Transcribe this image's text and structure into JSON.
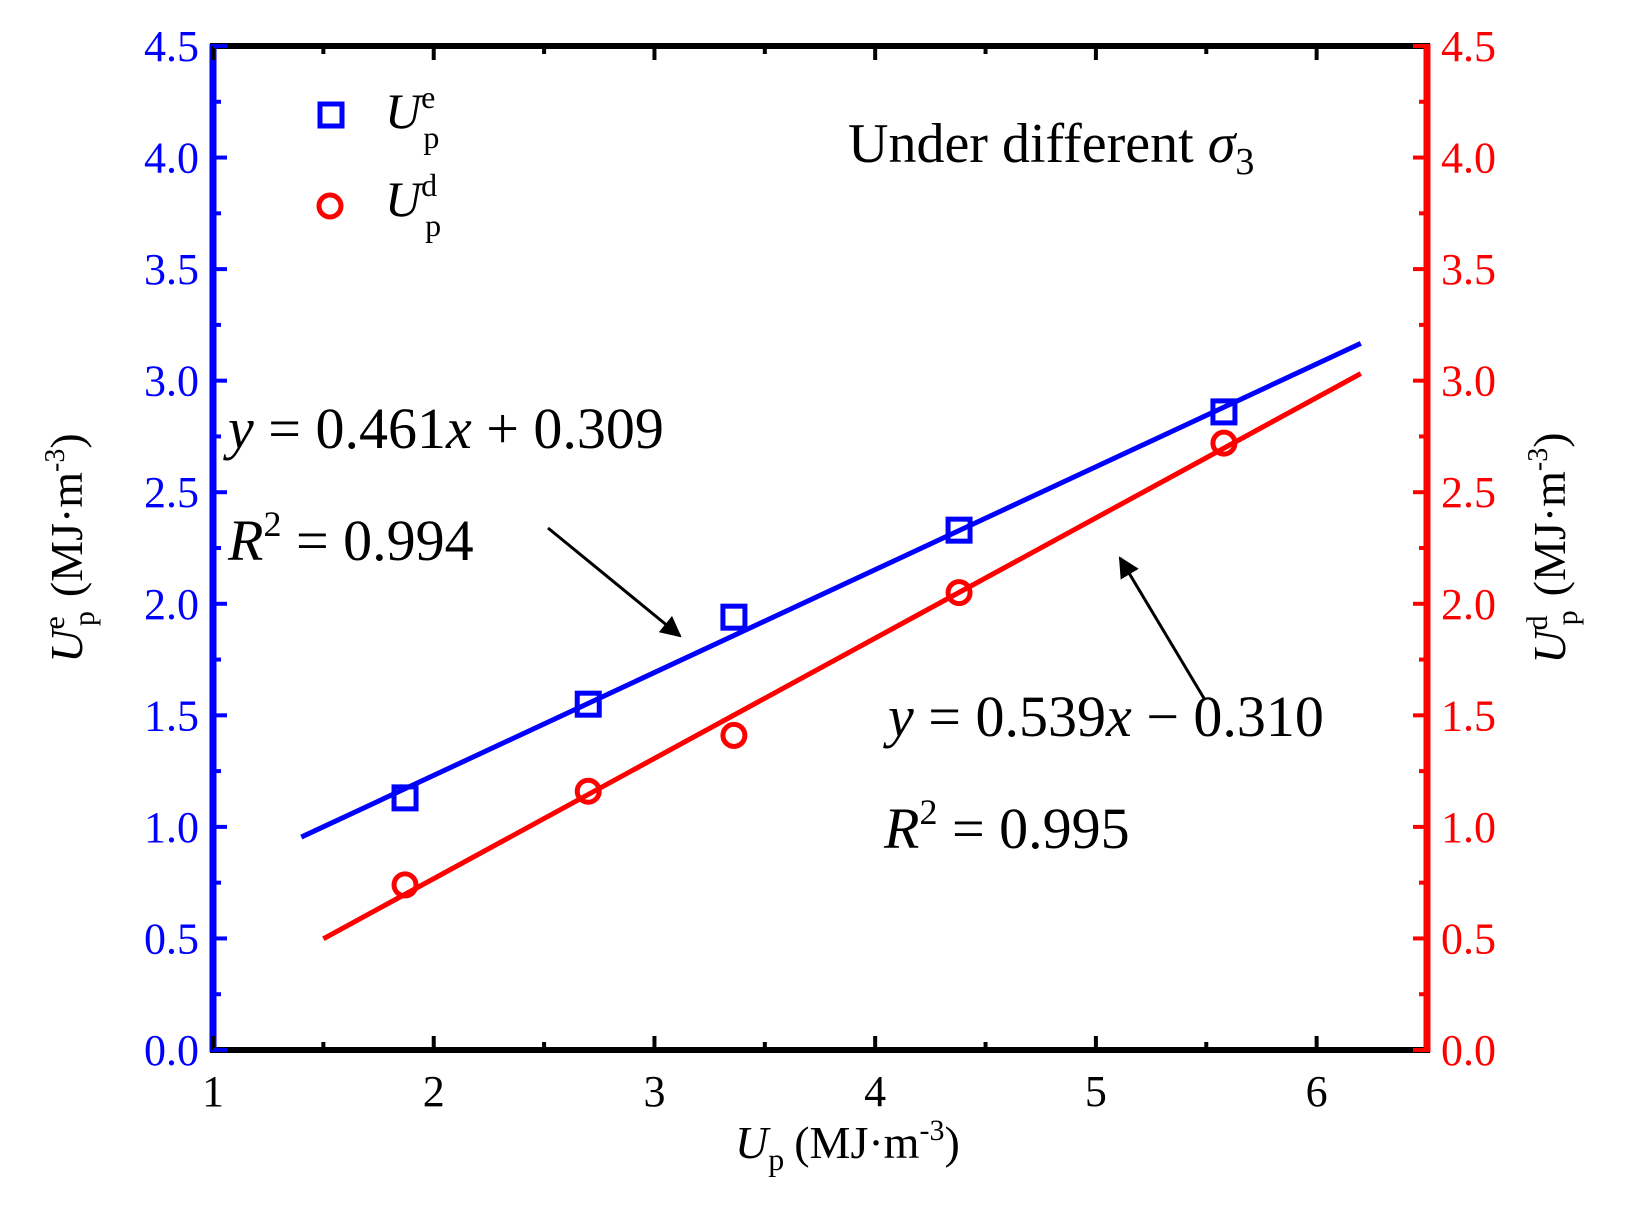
{
  "chart_data": {
    "type": "scatter",
    "annotation_title": {
      "text": "Under different ",
      "symbol": "σ",
      "sub": "3"
    },
    "xlabel": {
      "main": "U",
      "sub": "p",
      "unit": "(MJ·m",
      "unit_sup": "-3",
      "unit_close": ")"
    },
    "ylabel_left": {
      "main": "U",
      "sup": "e",
      "sub": "p",
      "unit": "(MJ·m",
      "unit_sup": "-3",
      "unit_close": ")"
    },
    "ylabel_right": {
      "main": "U",
      "sup": "d",
      "sub": "p",
      "unit": "(MJ·m",
      "unit_sup": "-3",
      "unit_close": ")"
    },
    "xlim": [
      1,
      6.5
    ],
    "ylim": [
      0,
      4.5
    ],
    "x_ticks": [
      "1",
      "2",
      "3",
      "4",
      "5",
      "6"
    ],
    "y_ticks": [
      "0.0",
      "0.5",
      "1.0",
      "1.5",
      "2.0",
      "2.5",
      "3.0",
      "3.5",
      "4.0",
      "4.5"
    ],
    "colors": {
      "left_axis": "#0000ff",
      "right_axis": "#ff0000",
      "series_e": "#0000ff",
      "series_d": "#ff0000"
    },
    "legend_placement": "top-left",
    "series": [
      {
        "name": "U^e_p",
        "legend": {
          "main": "U",
          "sup": "e",
          "sub": "p"
        },
        "marker": "square",
        "color": "#0000ff",
        "x": [
          1.87,
          2.7,
          3.36,
          4.38,
          5.58
        ],
        "y": [
          1.13,
          1.55,
          1.94,
          2.33,
          2.86
        ],
        "fit": {
          "slope": 0.461,
          "intercept": 0.309,
          "x_range": [
            1.4,
            6.2
          ]
        },
        "equation": {
          "y": "y",
          "rest": " = 0.461",
          "x": "x",
          "tail": " + 0.309"
        },
        "r2": {
          "R": "R",
          "sup": "2",
          "rest": " = 0.994"
        }
      },
      {
        "name": "U^d_p",
        "legend": {
          "main": "U",
          "sup": "d",
          "sub": "p"
        },
        "marker": "circle",
        "color": "#ff0000",
        "x": [
          1.87,
          2.7,
          3.36,
          4.38,
          5.58
        ],
        "y": [
          0.74,
          1.16,
          1.41,
          2.05,
          2.72
        ],
        "fit": {
          "slope": 0.539,
          "intercept": -0.31,
          "x_range": [
            1.5,
            6.2
          ]
        },
        "equation": {
          "y": "y",
          "rest": " = 0.539",
          "x": "x",
          "tail": " − 0.310"
        },
        "r2": {
          "R": "R",
          "sup": "2",
          "rest": " = 0.995"
        }
      }
    ]
  }
}
